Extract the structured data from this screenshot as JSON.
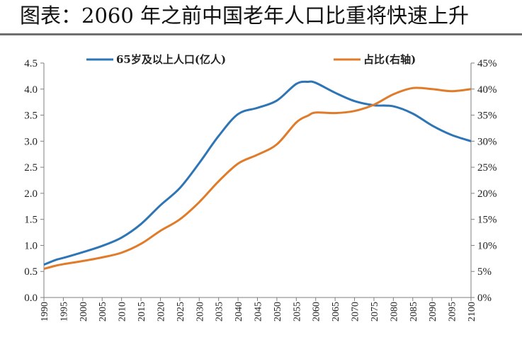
{
  "header": {
    "title": "图表：2060 年之前中国老年人口比重将快速上升"
  },
  "chart_data": {
    "type": "line",
    "x": [
      1990,
      1993,
      1995,
      2000,
      2005,
      2010,
      2015,
      2020,
      2025,
      2030,
      2035,
      2040,
      2045,
      2050,
      2055,
      2058,
      2060,
      2065,
      2070,
      2075,
      2080,
      2085,
      2090,
      2095,
      2100
    ],
    "series": [
      {
        "name": "65岁及以上人口(亿人)",
        "axis": "left",
        "color": "#2e75b6",
        "values": [
          0.63,
          0.72,
          0.76,
          0.87,
          0.99,
          1.15,
          1.41,
          1.77,
          2.1,
          2.58,
          3.1,
          3.52,
          3.64,
          3.78,
          4.1,
          4.14,
          4.12,
          3.93,
          3.77,
          3.69,
          3.67,
          3.53,
          3.3,
          3.12,
          3.0
        ]
      },
      {
        "name": "占比(右轴)",
        "axis": "right",
        "color": "#e07b2a",
        "values": [
          5.5,
          6.1,
          6.4,
          7.0,
          7.7,
          8.6,
          10.3,
          12.8,
          15.0,
          18.3,
          22.3,
          25.7,
          27.4,
          29.4,
          33.6,
          34.9,
          35.5,
          35.4,
          35.8,
          37.0,
          39.0,
          40.2,
          40.0,
          39.6,
          40.0
        ]
      }
    ],
    "y_left": {
      "min": 0,
      "max": 4.5,
      "ticks": [
        "0.0",
        "0.5",
        "1.0",
        "1.5",
        "2.0",
        "2.5",
        "3.0",
        "3.5",
        "4.0",
        "4.5"
      ]
    },
    "y_right": {
      "min": 0,
      "max": 45,
      "ticks": [
        "0%",
        "5%",
        "10%",
        "15%",
        "20%",
        "25%",
        "30%",
        "35%",
        "40%",
        "45%"
      ]
    },
    "x_ticks": [
      "1990",
      "1995",
      "2000",
      "2005",
      "2010",
      "2015",
      "2020",
      "2025",
      "2030",
      "2035",
      "2040",
      "2045",
      "2050",
      "2055",
      "2060",
      "2065",
      "2070",
      "2075",
      "2080",
      "2085",
      "2090",
      "2095",
      "2100"
    ],
    "x_range": [
      1990,
      2100
    ],
    "grid": false,
    "legend_placement": "top"
  }
}
